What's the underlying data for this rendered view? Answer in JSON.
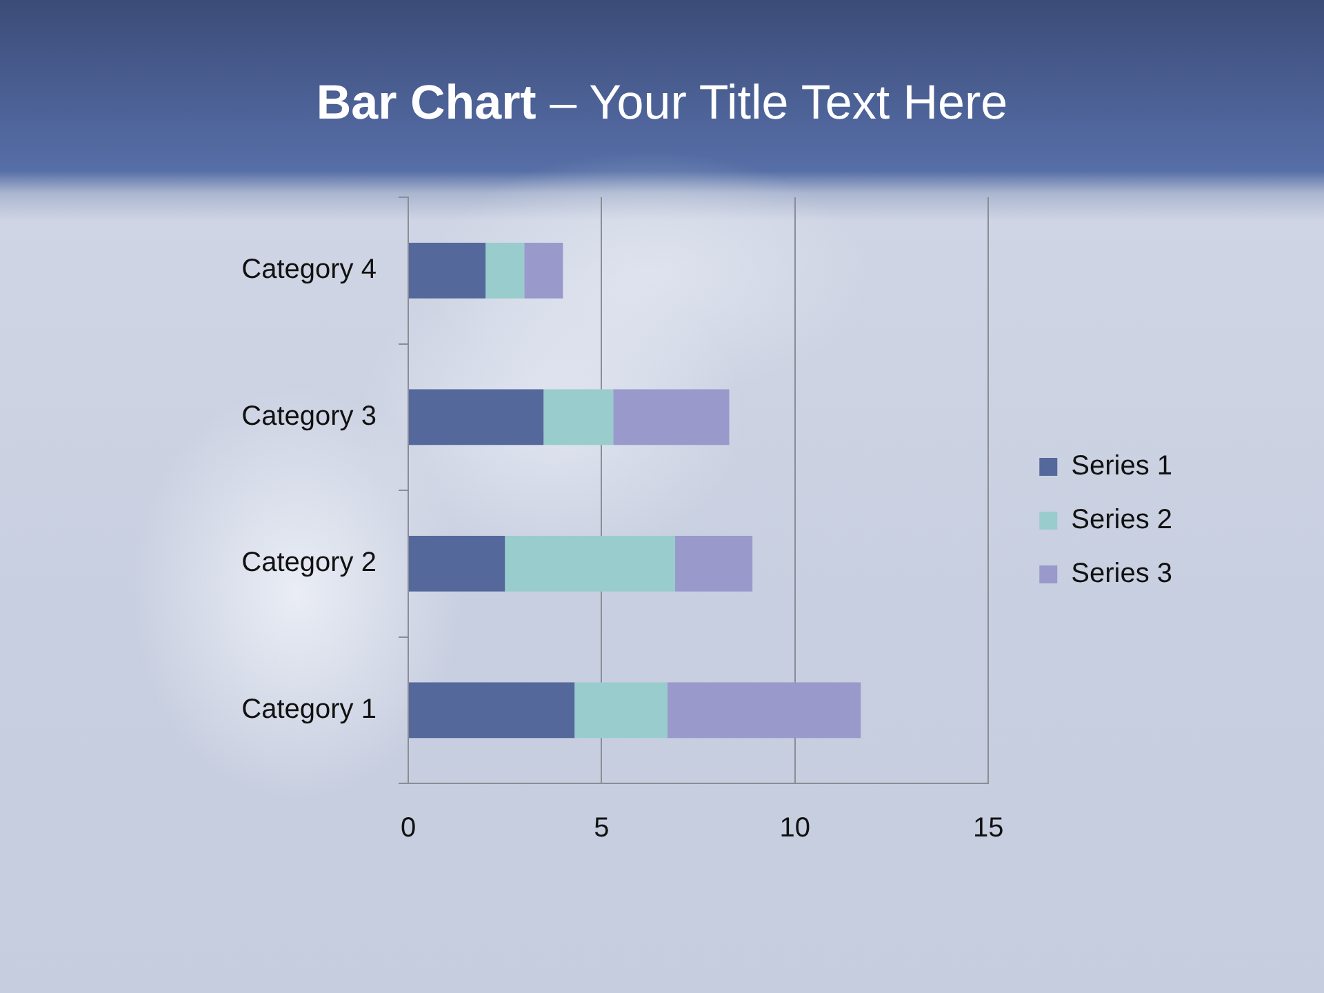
{
  "chart_data": {
    "type": "bar",
    "orientation": "horizontal",
    "stacked": true,
    "title": "Bar Chart – Your Title Text Here",
    "categories": [
      "Category 4",
      "Category 3",
      "Category 2",
      "Category 1"
    ],
    "series": [
      {
        "name": "Series 1",
        "color": "#55689c",
        "values": [
          2,
          3.5,
          2.5,
          4.3
        ]
      },
      {
        "name": "Series 2",
        "color": "#99cccc",
        "values": [
          1,
          1.8,
          4.4,
          2.4
        ]
      },
      {
        "name": "Series 3",
        "color": "#9999cc",
        "values": [
          1,
          3,
          2,
          5
        ]
      }
    ],
    "xlim": [
      0,
      15
    ],
    "xticks": [
      0,
      5,
      10,
      15
    ],
    "grid": "x",
    "legend": "right"
  }
}
